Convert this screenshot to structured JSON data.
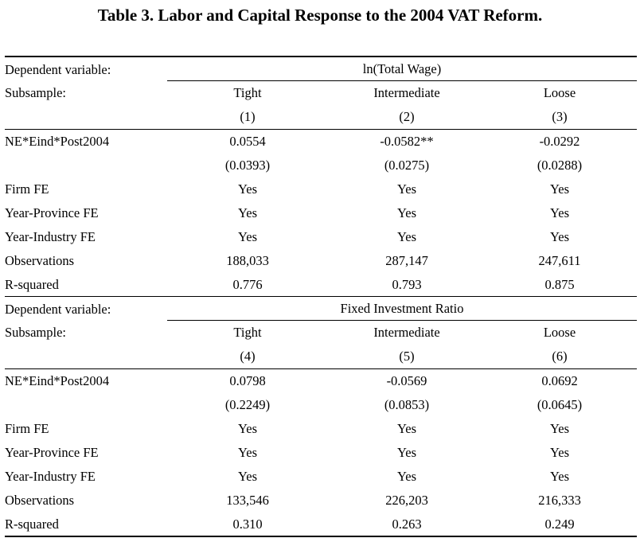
{
  "title": "Table 3. Labor and Capital Response to the 2004 VAT Reform.",
  "labels": {
    "dependent_variable": "Dependent variable:",
    "subsample": "Subsample:",
    "coef": "NE*Eind*Post2004",
    "firm_fe": "Firm FE",
    "year_province_fe": "Year-Province FE",
    "year_industry_fe": "Year-Industry FE",
    "observations": "Observations",
    "r_squared": "R-squared"
  },
  "panels": [
    {
      "dependent": "ln(Total Wage)",
      "subsamples": [
        "Tight",
        "Intermediate",
        "Loose"
      ],
      "columns": [
        "(1)",
        "(2)",
        "(3)"
      ],
      "coef": [
        "0.0554",
        "-0.0582**",
        "-0.0292"
      ],
      "se": [
        "(0.0393)",
        "(0.0275)",
        "(0.0288)"
      ],
      "firm_fe": [
        "Yes",
        "Yes",
        "Yes"
      ],
      "year_province_fe": [
        "Yes",
        "Yes",
        "Yes"
      ],
      "year_industry_fe": [
        "Yes",
        "Yes",
        "Yes"
      ],
      "observations": [
        "188,033",
        "287,147",
        "247,611"
      ],
      "r_squared": [
        "0.776",
        "0.793",
        "0.875"
      ]
    },
    {
      "dependent": "Fixed Investment Ratio",
      "subsamples": [
        "Tight",
        "Intermediate",
        "Loose"
      ],
      "columns": [
        "(4)",
        "(5)",
        "(6)"
      ],
      "coef": [
        "0.0798",
        "-0.0569",
        "0.0692"
      ],
      "se": [
        "(0.2249)",
        "(0.0853)",
        "(0.0645)"
      ],
      "firm_fe": [
        "Yes",
        "Yes",
        "Yes"
      ],
      "year_province_fe": [
        "Yes",
        "Yes",
        "Yes"
      ],
      "year_industry_fe": [
        "Yes",
        "Yes",
        "Yes"
      ],
      "observations": [
        "133,546",
        "226,203",
        "216,333"
      ],
      "r_squared": [
        "0.310",
        "0.263",
        "0.249"
      ]
    }
  ]
}
